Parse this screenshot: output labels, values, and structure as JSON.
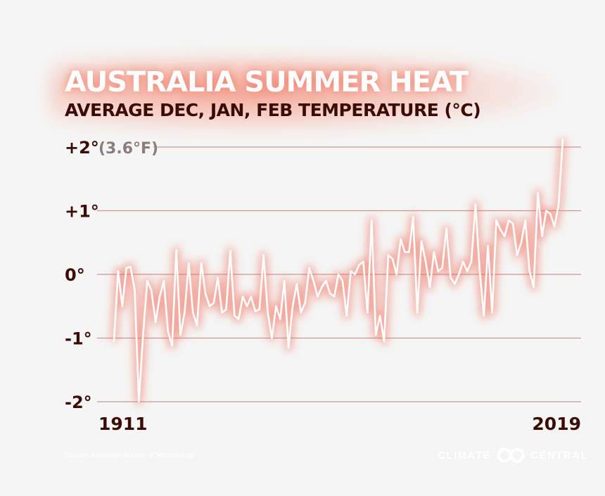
{
  "chart_data": {
    "type": "line",
    "title": "AUSTRALIA SUMMER HEAT",
    "subtitle": "AVERAGE DEC, JAN, FEB TEMPERATURE (°C)",
    "ylim": [
      -2,
      2.2
    ],
    "yticks": [
      {
        "value": 2,
        "label": "+2°",
        "extra": "(3.6°F)"
      },
      {
        "value": 1,
        "label": "+1°",
        "extra": ""
      },
      {
        "value": 0,
        "label": "0°",
        "extra": ""
      },
      {
        "value": -1,
        "label": "-1°",
        "extra": ""
      },
      {
        "value": -2,
        "label": "-2°",
        "extra": ""
      }
    ],
    "x_start_label": "1911",
    "x_end_label": "2019",
    "x": [
      1911,
      1912,
      1913,
      1914,
      1915,
      1916,
      1917,
      1918,
      1919,
      1920,
      1921,
      1922,
      1923,
      1924,
      1925,
      1926,
      1927,
      1928,
      1929,
      1930,
      1931,
      1932,
      1933,
      1934,
      1935,
      1936,
      1937,
      1938,
      1939,
      1940,
      1941,
      1942,
      1943,
      1944,
      1945,
      1946,
      1947,
      1948,
      1949,
      1950,
      1951,
      1952,
      1953,
      1954,
      1955,
      1956,
      1957,
      1958,
      1959,
      1960,
      1961,
      1962,
      1963,
      1964,
      1965,
      1966,
      1967,
      1968,
      1969,
      1970,
      1971,
      1972,
      1973,
      1974,
      1975,
      1976,
      1977,
      1978,
      1979,
      1980,
      1981,
      1982,
      1983,
      1984,
      1985,
      1986,
      1987,
      1988,
      1989,
      1990,
      1991,
      1992,
      1993,
      1994,
      1995,
      1996,
      1997,
      1998,
      1999,
      2000,
      2001,
      2002,
      2003,
      2004,
      2005,
      2006,
      2007,
      2008,
      2009,
      2010,
      2011,
      2012,
      2013,
      2014,
      2015,
      2016,
      2017,
      2018,
      2019
    ],
    "series": [
      {
        "values": [
          -1.05,
          0.05,
          -0.5,
          0.1,
          0.12,
          -0.25,
          -2.0,
          -0.95,
          -0.1,
          -0.25,
          -0.75,
          -0.35,
          -0.1,
          -0.9,
          -1.12,
          0.38,
          -0.95,
          -0.6,
          0.17,
          -0.6,
          -0.8,
          0.18,
          -0.3,
          -0.5,
          -0.45,
          -0.05,
          -0.6,
          -0.55,
          0.37,
          -0.65,
          -0.7,
          -0.35,
          -0.5,
          -0.35,
          -0.58,
          -0.55,
          0.3,
          -0.6,
          -1.0,
          -0.5,
          -0.7,
          -0.1,
          -1.15,
          -0.5,
          -0.15,
          -0.6,
          -0.45,
          0.1,
          -0.1,
          -0.35,
          -0.2,
          -0.1,
          -0.3,
          -0.35,
          0.0,
          -0.1,
          -0.65,
          0.05,
          0.0,
          0.15,
          0.2,
          -0.6,
          0.85,
          -0.95,
          -0.65,
          -1.05,
          0.3,
          0.25,
          0.0,
          0.55,
          0.35,
          0.35,
          0.9,
          -0.6,
          0.52,
          0.2,
          -0.2,
          0.35,
          0.05,
          0.1,
          0.72,
          -0.05,
          -0.15,
          0.0,
          0.2,
          0.05,
          0.2,
          1.1,
          0.05,
          -0.65,
          0.45,
          -0.6,
          0.85,
          0.7,
          0.6,
          0.85,
          0.8,
          0.3,
          0.5,
          0.85,
          0.05,
          -0.2,
          1.28,
          0.6,
          1.0,
          0.95,
          0.75,
          1.1,
          2.12
        ]
      }
    ],
    "colors": {
      "line": "#ffffff",
      "line_glow": "#f06a55",
      "grid": "#c89a93",
      "axis_text": "#3b0c06",
      "extra_text": "#8a7e7c"
    }
  },
  "source": "Source: Australian Bureau of Meteorology",
  "logo": {
    "left": "CLIMATE",
    "right": "CENTRAL"
  }
}
